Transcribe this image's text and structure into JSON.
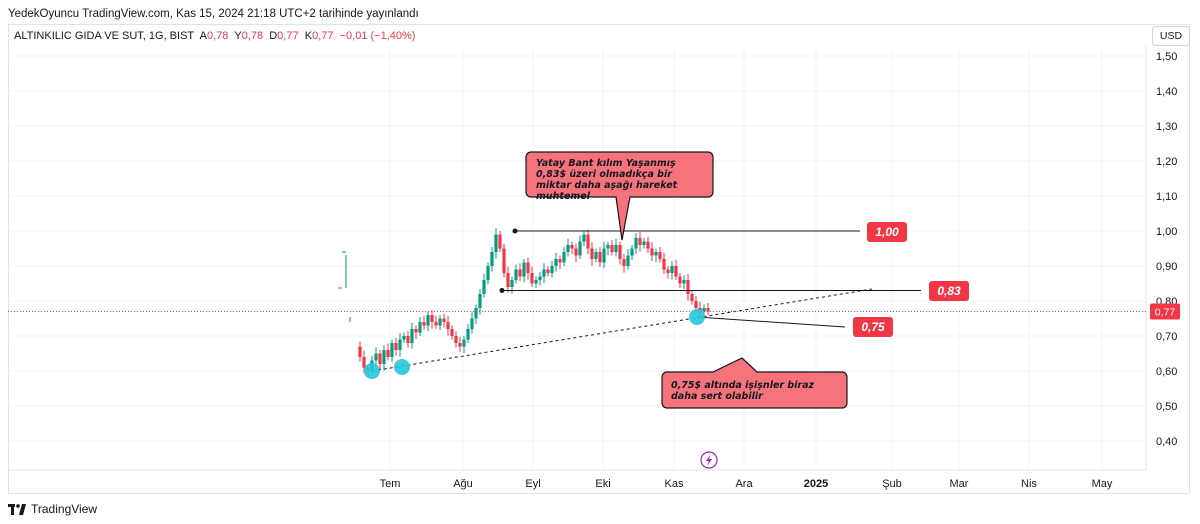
{
  "header": {
    "publish_text": "YedekOyuncu TradingView.com, Kas 15, 2024 21:18 UTC+2 tarihinde yayınlandı"
  },
  "symbol": {
    "name": "ALTINKILIC GIDA VE SUT, 1G, BIST",
    "open_label": "A",
    "open_value": "0,78",
    "high_label": "Y",
    "high_value": "0,78",
    "low_label": "D",
    "low_value": "0,77",
    "close_label": "K",
    "close_value": "0,77",
    "change": "−0,01 (−1,40%)"
  },
  "currency": "USD",
  "footer": {
    "brand": "TradingView"
  },
  "colors": {
    "up": "#089981",
    "down": "#f23645",
    "callout_fill": "#f7737c",
    "marker": "#26c6da",
    "last_price": "#f23645"
  },
  "chart_data": {
    "type": "candlestick",
    "y_axis": {
      "ticks": [
        "1,50",
        "1,40",
        "1,30",
        "1,20",
        "1,10",
        "1,00",
        "0,90",
        "0,80",
        "0,70",
        "0,60",
        "0,50",
        "0,40"
      ],
      "min": 0.35,
      "max": 1.53
    },
    "x_axis": {
      "ticks": [
        "Tem",
        "Ağu",
        "Eyl",
        "Eki",
        "Kas",
        "Ara",
        "2025",
        "Şub",
        "Mar",
        "Nis",
        "May"
      ]
    },
    "last_price": "0,77",
    "levels": [
      {
        "label": "1,00",
        "value": 1.0
      },
      {
        "label": "0,83",
        "value": 0.83
      },
      {
        "label": "0,75",
        "value": 0.75
      }
    ],
    "annotations": [
      {
        "text": "Yatay Bant kılım Yaşanmış 0,83$ üzeri olmadıkça bir miktar daha aşağı hareket muhtemel"
      },
      {
        "text": "0,75$ altında işişnler biraz daha sert olabilir"
      }
    ],
    "price_path": [
      0.67,
      0.64,
      0.61,
      0.6,
      0.63,
      0.65,
      0.62,
      0.66,
      0.64,
      0.68,
      0.66,
      0.69,
      0.7,
      0.68,
      0.72,
      0.71,
      0.74,
      0.73,
      0.76,
      0.74,
      0.73,
      0.75,
      0.74,
      0.72,
      0.7,
      0.68,
      0.67,
      0.69,
      0.72,
      0.75,
      0.78,
      0.82,
      0.86,
      0.9,
      0.94,
      0.99,
      0.95,
      0.88,
      0.84,
      0.86,
      0.89,
      0.87,
      0.91,
      0.88,
      0.85,
      0.86,
      0.87,
      0.89,
      0.88,
      0.9,
      0.92,
      0.91,
      0.94,
      0.96,
      0.95,
      0.93,
      0.97,
      0.99,
      0.95,
      0.92,
      0.94,
      0.91,
      0.95,
      0.96,
      0.94,
      0.96,
      0.92,
      0.9,
      0.93,
      0.95,
      0.98,
      0.96,
      0.97,
      0.95,
      0.93,
      0.94,
      0.92,
      0.89,
      0.88,
      0.9,
      0.87,
      0.85,
      0.86,
      0.82,
      0.8,
      0.78,
      0.77,
      0.78,
      0.77
    ]
  }
}
